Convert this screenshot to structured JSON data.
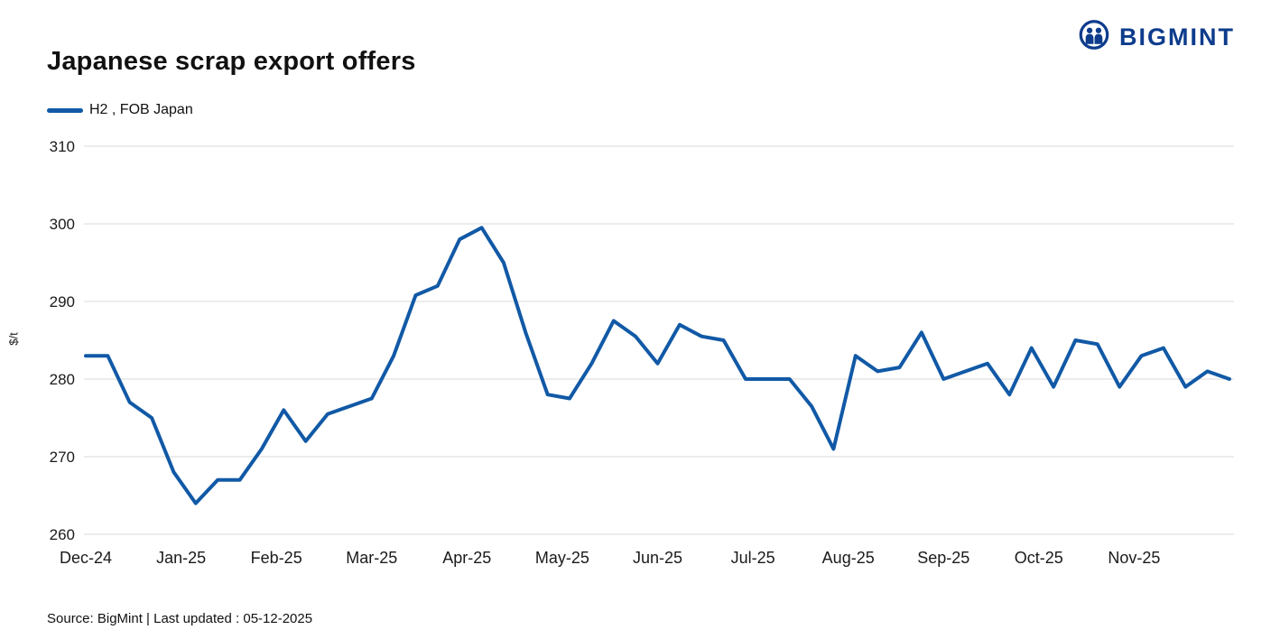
{
  "header": {
    "title": "Japanese scrap export offers",
    "logo_text": "BIGMINT",
    "logo_color": "#0d3c8c"
  },
  "legend": {
    "label": "H2 , FOB Japan",
    "swatch_color": "#1159a6"
  },
  "chart_data": {
    "type": "line",
    "title": "Japanese scrap export offers",
    "xlabel": "",
    "ylabel": "$/t",
    "ylim": [
      260,
      310
    ],
    "yticks": [
      260,
      270,
      280,
      290,
      300,
      310
    ],
    "grid": "horizontal",
    "legend_position": "top-left",
    "line_color": "#1159a6",
    "x_tick_labels": [
      "Dec-24",
      "Jan-25",
      "Feb-25",
      "Mar-25",
      "Apr-25",
      "May-25",
      "Jun-25",
      "Jul-25",
      "Aug-25",
      "Sep-25",
      "Oct-25",
      "Nov-25"
    ],
    "series": [
      {
        "name": "H2 , FOB Japan",
        "cadence": "weekly",
        "x_start": "Dec-24",
        "values": [
          283,
          283,
          277,
          275,
          268,
          264,
          267,
          267,
          271,
          276,
          272,
          275.5,
          276.5,
          277.5,
          283,
          290.8,
          292,
          298,
          299.5,
          295,
          286,
          278,
          277.5,
          282,
          287.5,
          285.5,
          282,
          287,
          285.5,
          285,
          280,
          280,
          280,
          276.5,
          271,
          283,
          281,
          281.5,
          286,
          280,
          281,
          282,
          278,
          284,
          279,
          285,
          284.5,
          279,
          283,
          284,
          279,
          281,
          280
        ]
      }
    ]
  },
  "footer": {
    "source": "Source: BigMint  | Last updated : 05-12-2025"
  }
}
